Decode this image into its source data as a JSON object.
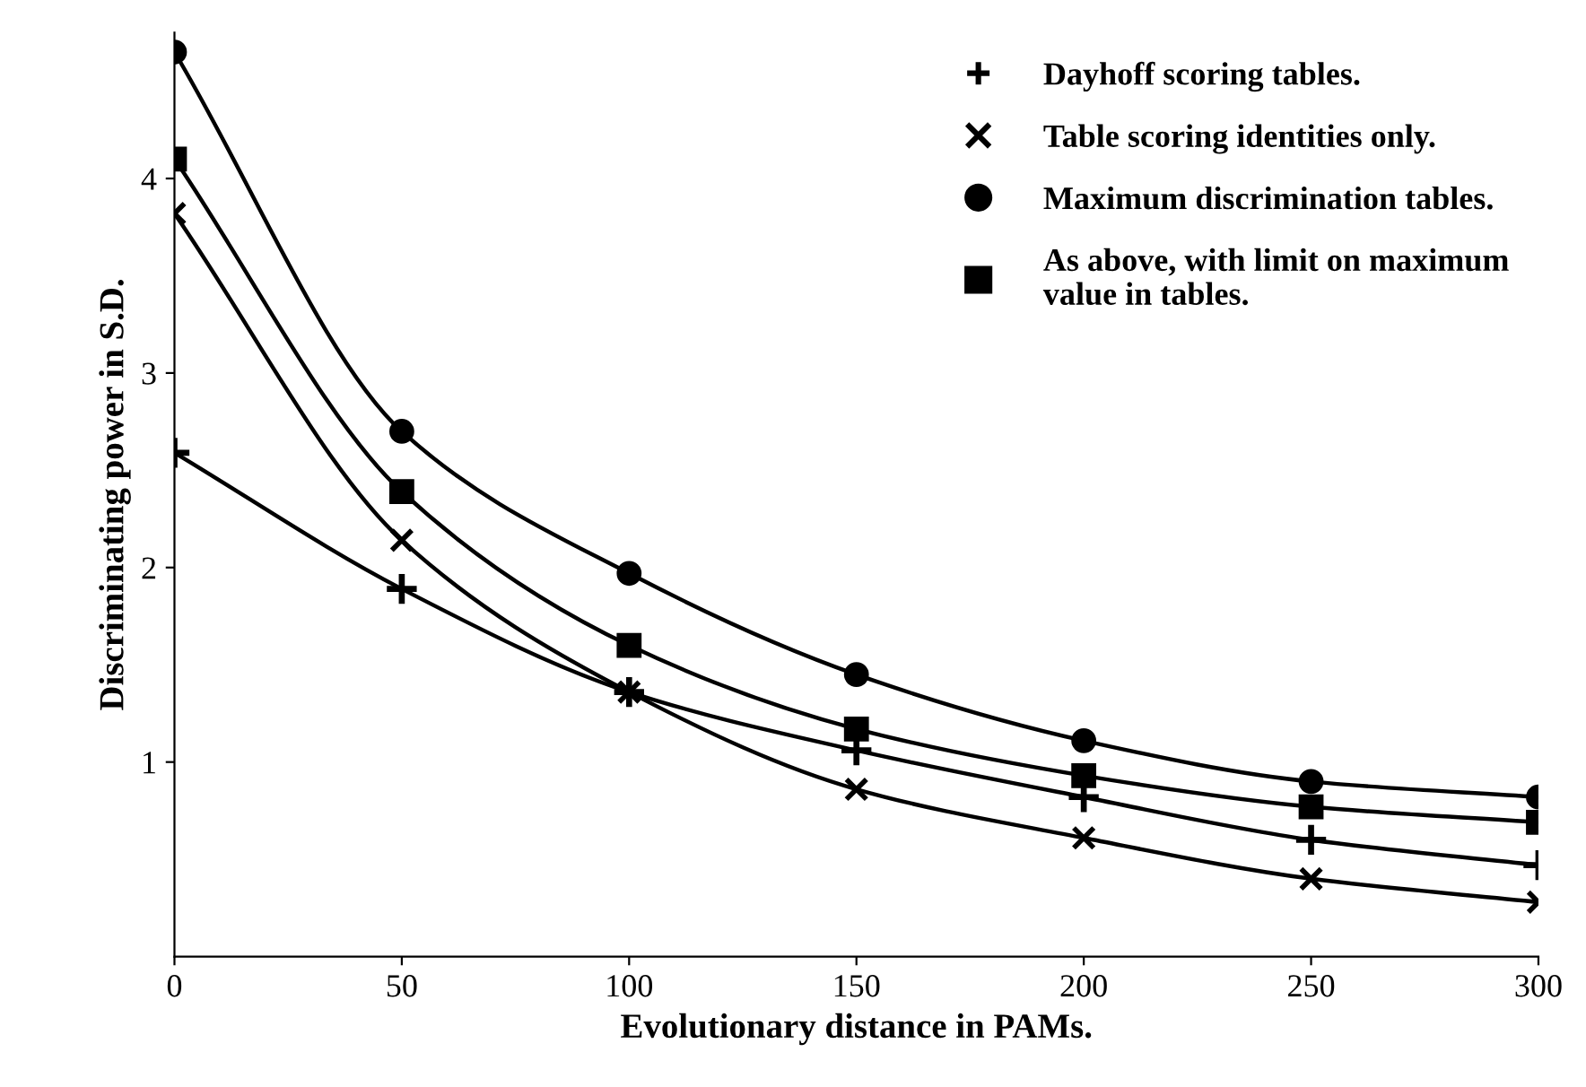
{
  "chart_data": {
    "type": "line",
    "xlabel": "Evolutionary distance in PAMs.",
    "ylabel": "Discriminating power in S.D.",
    "x": [
      0,
      50,
      100,
      150,
      200,
      250,
      300
    ],
    "series": [
      {
        "name": "Dayhoff scoring tables.",
        "color": "#000000",
        "marker": "cross",
        "values": [
          2.59,
          1.89,
          1.36,
          1.06,
          0.82,
          0.6,
          0.47
        ]
      },
      {
        "name": "Table scoring identities only.",
        "color": "#000000",
        "marker": "x",
        "values": [
          3.82,
          2.14,
          1.36,
          0.86,
          0.61,
          0.4,
          0.28
        ]
      },
      {
        "name": "Maximum discrimination tables.",
        "color": "#000000",
        "marker": "circle",
        "values": [
          4.65,
          2.7,
          1.97,
          1.45,
          1.11,
          0.9,
          0.82
        ]
      },
      {
        "name": "As above, with limit on maximum\nvalue in tables.",
        "color": "#000000",
        "marker": "square",
        "values": [
          4.1,
          2.39,
          1.6,
          1.17,
          0.93,
          0.77,
          0.69
        ]
      }
    ],
    "xlim": [
      0,
      300
    ],
    "xticks": [
      0,
      50,
      100,
      150,
      200,
      250,
      300
    ],
    "ylim": [
      0,
      4.75
    ],
    "yticks": [
      1,
      2,
      3,
      4
    ],
    "legend": "top right",
    "grid": false,
    "line_style": "solid"
  }
}
